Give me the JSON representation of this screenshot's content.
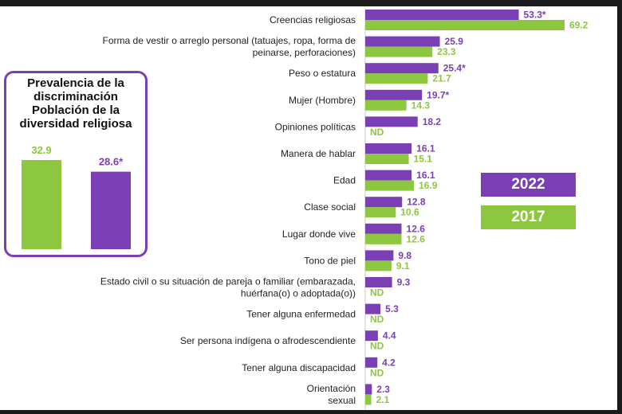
{
  "chart_data": [
    {
      "type": "bar",
      "orientation": "horizontal",
      "categories": [
        "Creencias religiosas",
        "Forma de vestir o arreglo personal (tatuajes, ropa, forma de peinarse, perforaciones)",
        "Peso o estatura",
        "Mujer (Hombre)",
        "Opiniones políticas",
        "Manera de hablar",
        "Edad",
        "Clase social",
        "Lugar donde vive",
        "Tono de piel",
        "Estado civil o su situación de pareja o familiar (embarazada, huérfana(o) o adoptada(o))",
        "Tener alguna enfermedad",
        "Ser persona indígena o afrodescendiente",
        "Tener alguna discapacidad",
        "Orientación sexual"
      ],
      "category_lines": [
        [
          "Creencias religiosas"
        ],
        [
          "Forma de vestir o arreglo personal (tatuajes, ropa, forma de",
          "peinarse, perforaciones)"
        ],
        [
          "Peso o estatura"
        ],
        [
          "Mujer (Hombre)"
        ],
        [
          "Opiniones políticas"
        ],
        [
          "Manera de hablar"
        ],
        [
          "Edad"
        ],
        [
          "Clase social"
        ],
        [
          "Lugar donde vive"
        ],
        [
          "Tono de piel"
        ],
        [
          "Estado civil o su situación de pareja o familiar (embarazada,",
          "huérfana(o) o adoptada(o))"
        ],
        [
          "Tener alguna enfermedad"
        ],
        [
          "Ser persona indígena o afrodescendiente"
        ],
        [
          "Tener alguna discapacidad"
        ],
        [
          "Orientación",
          "sexual"
        ]
      ],
      "series": [
        {
          "name": "2022",
          "color": "#7b3fb5",
          "values": [
            53.3,
            25.9,
            25.4,
            19.7,
            18.2,
            16.1,
            16.1,
            12.8,
            12.6,
            9.8,
            9.3,
            5.3,
            4.4,
            4.2,
            2.3
          ],
          "labels": [
            "53.3*",
            "25.9",
            "25.4*",
            "19.7*",
            "18.2",
            "16.1",
            "16.1",
            "12.8",
            "12.6",
            "9.8",
            "9.3",
            "5.3",
            "4.4",
            "4.2",
            "2.3"
          ]
        },
        {
          "name": "2017",
          "color": "#8dc63f",
          "values": [
            69.2,
            23.3,
            21.7,
            14.3,
            null,
            15.1,
            16.9,
            10.6,
            12.6,
            9.1,
            null,
            null,
            null,
            null,
            2.1
          ],
          "labels": [
            "69.2",
            "23.3",
            "21.7",
            "14.3",
            "ND",
            "15.1",
            "16.9",
            "10.6",
            "12.6",
            "9.1",
            "ND",
            "ND",
            "ND",
            "ND",
            "2.1"
          ]
        }
      ],
      "legend": [
        "2022",
        "2017"
      ],
      "legend_position": "right",
      "grid": false
    },
    {
      "type": "bar",
      "title": "Prevalencia de la discriminación Población de la diversidad religiosa",
      "title_lines": [
        "Prevalencia de la",
        "discriminación",
        "Población de la",
        "diversidad religiosa"
      ],
      "series": [
        {
          "name": "2017",
          "color": "#8dc63f",
          "value": 32.9,
          "label": "32.9"
        },
        {
          "name": "2022",
          "color": "#7b3fb5",
          "value": 28.6,
          "label": "28.6*"
        }
      ]
    }
  ],
  "legend": {
    "label_2022": "2022",
    "label_2017": "2017",
    "color_2022": "#7b3fb5",
    "color_2017": "#8dc63f"
  }
}
